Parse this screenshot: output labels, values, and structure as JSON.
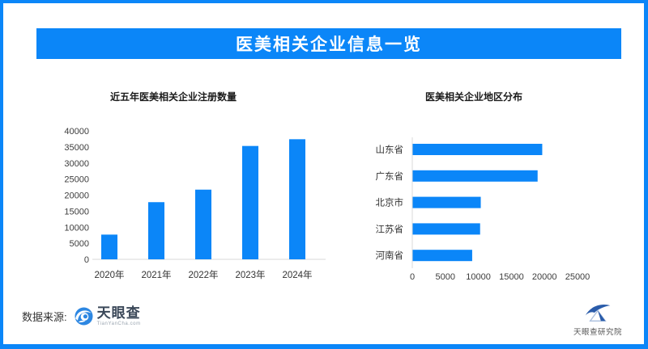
{
  "header": {
    "title": "医美相关企业信息一览"
  },
  "colors": {
    "accent_blue": "#0b86f8",
    "bar_blue": "#0b86f8",
    "axis_line_gray": "#d9d9d9",
    "logo_navy": "#2a5caa"
  },
  "chart_data": [
    {
      "type": "bar",
      "title": "近五年医美相关企业注册数量",
      "categories": [
        "2020年",
        "2021年",
        "2022年",
        "2023年",
        "2024年"
      ],
      "values": [
        7700,
        17800,
        21700,
        35300,
        37400
      ],
      "xlabel": "",
      "ylabel": "",
      "ylim": [
        0,
        40000
      ],
      "ytick_step": 5000,
      "grid": false,
      "legend": "none",
      "bar_color": "#0b86f8"
    },
    {
      "type": "bar-horizontal",
      "title": "医美相关企业地区分布",
      "categories": [
        "山东省",
        "广东省",
        "北京市",
        "江苏省",
        "河南省"
      ],
      "values": [
        19600,
        18900,
        10300,
        10200,
        9000
      ],
      "xlabel": "",
      "ylabel": "",
      "xlim": [
        0,
        25000
      ],
      "xtick_step": 5000,
      "grid": false,
      "legend": "none",
      "bar_color": "#0b86f8"
    }
  ],
  "footer": {
    "source_label": "数据来源:",
    "tyc_logo_name": "天眼查",
    "tyc_logo_sub": "TianYanCha.com",
    "institute_logo_name": "天眼查研究院"
  }
}
